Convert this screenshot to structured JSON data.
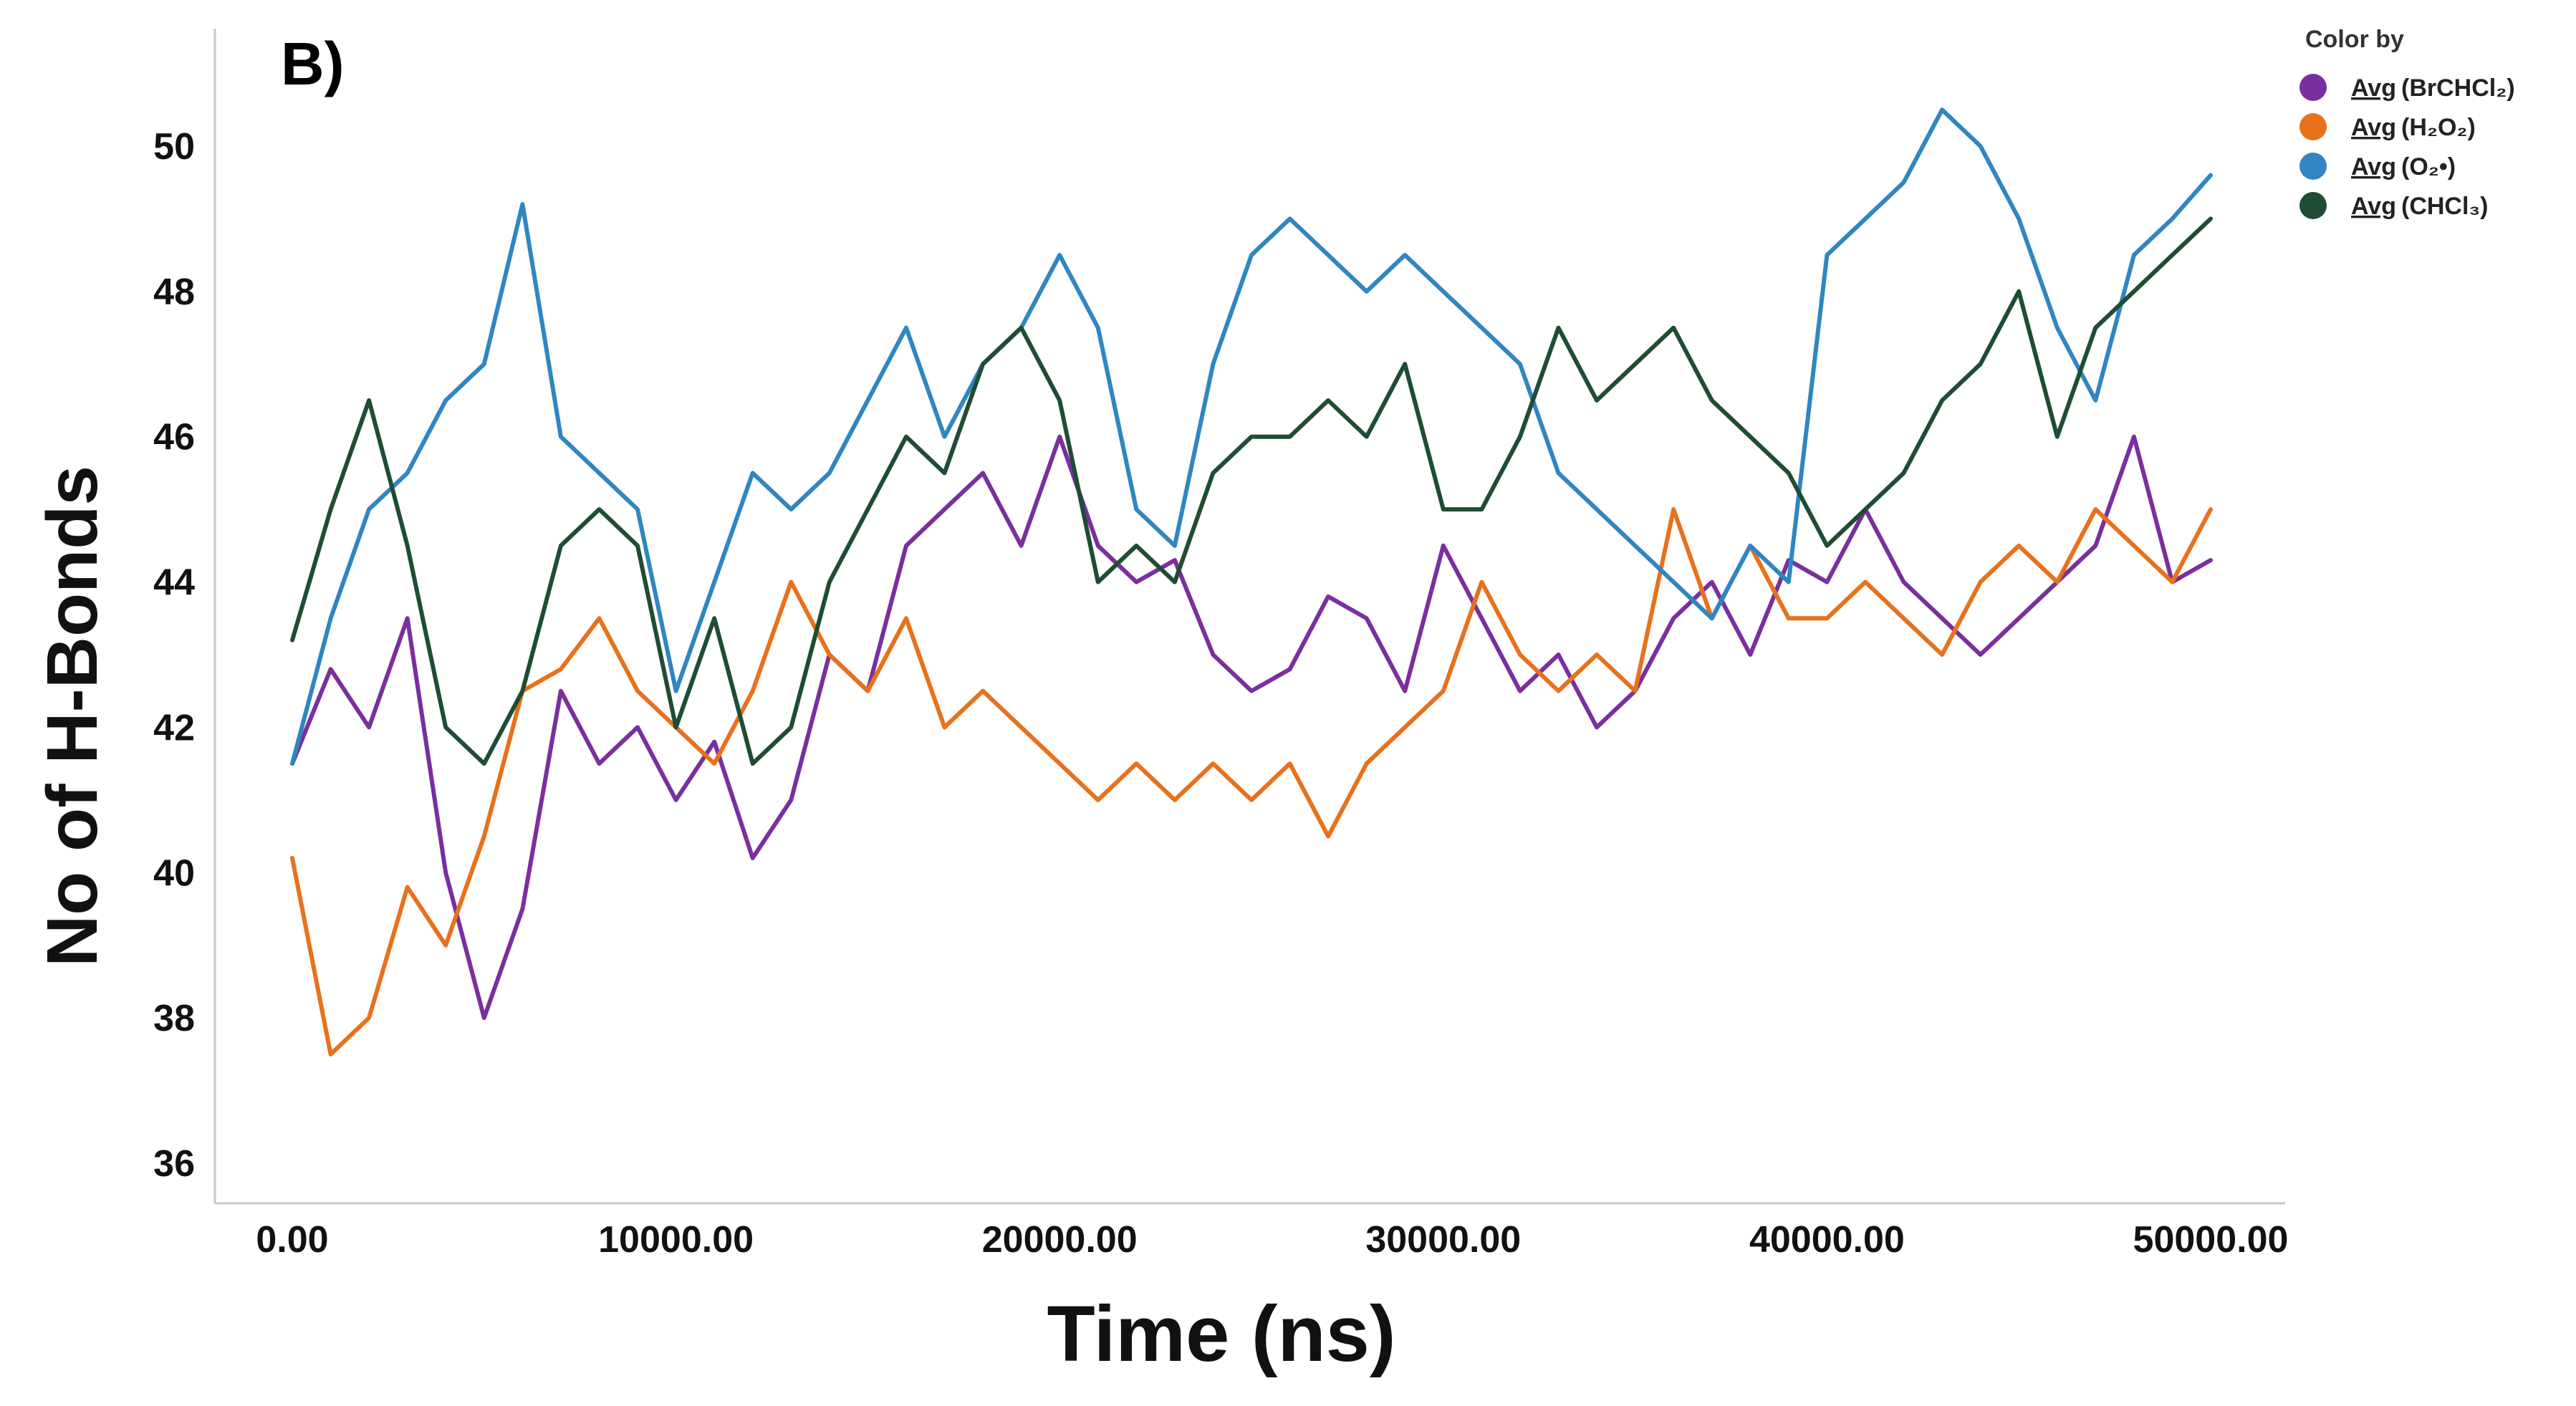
{
  "panel_label": "B)",
  "chart_data": {
    "type": "line",
    "title": "",
    "xlabel": "Time (ns)",
    "ylabel": "No of H-Bonds",
    "xlim": [
      -2000,
      52000
    ],
    "ylim": [
      35.6,
      51.5
    ],
    "x_ticks": [
      {
        "value": 0,
        "label": "0.00"
      },
      {
        "value": 10000,
        "label": "10000.00"
      },
      {
        "value": 20000,
        "label": "20000.00"
      },
      {
        "value": 30000,
        "label": "30000.00"
      },
      {
        "value": 40000,
        "label": "40000.00"
      },
      {
        "value": 50000,
        "label": "50000.00"
      }
    ],
    "y_ticks": [
      {
        "value": 36,
        "label": "36"
      },
      {
        "value": 38,
        "label": "38"
      },
      {
        "value": 40,
        "label": "40"
      },
      {
        "value": 42,
        "label": "42"
      },
      {
        "value": 44,
        "label": "44"
      },
      {
        "value": 46,
        "label": "46"
      },
      {
        "value": 48,
        "label": "48"
      },
      {
        "value": 50,
        "label": "50"
      }
    ],
    "grid": false,
    "legend": {
      "title": "Color by",
      "position": "top-right",
      "entries": [
        {
          "prefix": "Avg",
          "label": "(BrCHCl₂)",
          "color": "#7a2f9e"
        },
        {
          "prefix": "Avg",
          "label": "(H₂O₂)",
          "color": "#e8711c"
        },
        {
          "prefix": "Avg",
          "label": "(O₂•)",
          "color": "#2f86c1"
        },
        {
          "prefix": "Avg",
          "label": "(CHCl₃)",
          "color": "#1e4d34"
        }
      ]
    },
    "series": [
      {
        "name": "Avg (BrCHCl₂)",
        "color": "#7a2f9e",
        "x": [
          0,
          1000,
          2000,
          3000,
          4000,
          5000,
          6000,
          7000,
          8000,
          9000,
          10000,
          11000,
          12000,
          13000,
          14000,
          15000,
          16000,
          17000,
          18000,
          19000,
          20000,
          21000,
          22000,
          23000,
          24000,
          25000,
          26000,
          27000,
          28000,
          29000,
          30000,
          31000,
          32000,
          33000,
          34000,
          35000,
          36000,
          37000,
          38000,
          39000,
          40000,
          41000,
          42000,
          43000,
          44000,
          45000,
          46000,
          47000,
          48000,
          49000,
          50000
        ],
        "y": [
          41.5,
          42.8,
          42.0,
          43.5,
          40.0,
          38.0,
          39.5,
          42.5,
          41.5,
          42.0,
          41.0,
          41.8,
          40.2,
          41.0,
          43.0,
          42.5,
          44.5,
          45.0,
          45.5,
          44.5,
          46.0,
          44.5,
          44.0,
          44.3,
          43.0,
          42.5,
          42.8,
          43.8,
          43.5,
          42.5,
          44.5,
          43.5,
          42.5,
          43.0,
          42.0,
          42.5,
          43.5,
          44.0,
          43.0,
          44.3,
          44.0,
          45.0,
          44.0,
          43.5,
          43.0,
          43.5,
          44.0,
          44.5,
          46.0,
          44.0,
          44.3
        ]
      },
      {
        "name": "Avg (H₂O₂)",
        "color": "#e8711c",
        "x": [
          0,
          1000,
          2000,
          3000,
          4000,
          5000,
          6000,
          7000,
          8000,
          9000,
          10000,
          11000,
          12000,
          13000,
          14000,
          15000,
          16000,
          17000,
          18000,
          19000,
          20000,
          21000,
          22000,
          23000,
          24000,
          25000,
          26000,
          27000,
          28000,
          29000,
          30000,
          31000,
          32000,
          33000,
          34000,
          35000,
          36000,
          37000,
          38000,
          39000,
          40000,
          41000,
          42000,
          43000,
          44000,
          45000,
          46000,
          47000,
          48000,
          49000,
          50000
        ],
        "y": [
          40.2,
          37.5,
          38.0,
          39.8,
          39.0,
          40.5,
          42.5,
          42.8,
          43.5,
          42.5,
          42.0,
          41.5,
          42.5,
          44.0,
          43.0,
          42.5,
          43.5,
          42.0,
          42.5,
          42.0,
          41.5,
          41.0,
          41.5,
          41.0,
          41.5,
          41.0,
          41.5,
          40.5,
          41.5,
          42.0,
          42.5,
          44.0,
          43.0,
          42.5,
          43.0,
          42.5,
          45.0,
          43.5,
          44.5,
          43.5,
          43.5,
          44.0,
          43.5,
          43.0,
          44.0,
          44.5,
          44.0,
          45.0,
          44.5,
          44.0,
          45.0
        ]
      },
      {
        "name": "Avg (O₂•)",
        "color": "#2f86c1",
        "x": [
          0,
          1000,
          2000,
          3000,
          4000,
          5000,
          6000,
          7000,
          8000,
          9000,
          10000,
          11000,
          12000,
          13000,
          14000,
          15000,
          16000,
          17000,
          18000,
          19000,
          20000,
          21000,
          22000,
          23000,
          24000,
          25000,
          26000,
          27000,
          28000,
          29000,
          30000,
          31000,
          32000,
          33000,
          34000,
          35000,
          36000,
          37000,
          38000,
          39000,
          40000,
          41000,
          42000,
          43000,
          44000,
          45000,
          46000,
          47000,
          48000,
          49000,
          50000
        ],
        "y": [
          41.5,
          43.5,
          45.0,
          45.5,
          46.5,
          47.0,
          49.2,
          46.0,
          45.5,
          45.0,
          42.5,
          44.0,
          45.5,
          45.0,
          45.5,
          46.5,
          47.5,
          46.0,
          47.0,
          47.5,
          48.5,
          47.5,
          45.0,
          44.5,
          47.0,
          48.5,
          49.0,
          48.5,
          48.0,
          48.5,
          48.0,
          47.5,
          47.0,
          45.5,
          45.0,
          44.5,
          44.0,
          43.5,
          44.5,
          44.0,
          48.5,
          49.0,
          49.5,
          50.5,
          50.0,
          49.0,
          47.5,
          46.5,
          48.5,
          49.0,
          49.6
        ]
      },
      {
        "name": "Avg (CHCl₃)",
        "color": "#1e4d34",
        "x": [
          0,
          1000,
          2000,
          3000,
          4000,
          5000,
          6000,
          7000,
          8000,
          9000,
          10000,
          11000,
          12000,
          13000,
          14000,
          15000,
          16000,
          17000,
          18000,
          19000,
          20000,
          21000,
          22000,
          23000,
          24000,
          25000,
          26000,
          27000,
          28000,
          29000,
          30000,
          31000,
          32000,
          33000,
          34000,
          35000,
          36000,
          37000,
          38000,
          39000,
          40000,
          41000,
          42000,
          43000,
          44000,
          45000,
          46000,
          47000,
          48000,
          49000,
          50000
        ],
        "y": [
          43.2,
          45.0,
          46.5,
          44.5,
          42.0,
          41.5,
          42.5,
          44.5,
          45.0,
          44.5,
          42.0,
          43.5,
          41.5,
          42.0,
          44.0,
          45.0,
          46.0,
          45.5,
          47.0,
          47.5,
          46.5,
          44.0,
          44.5,
          44.0,
          45.5,
          46.0,
          46.0,
          46.5,
          46.0,
          47.0,
          45.0,
          45.0,
          46.0,
          47.5,
          46.5,
          47.0,
          47.5,
          46.5,
          46.0,
          45.5,
          44.5,
          45.0,
          45.5,
          46.5,
          47.0,
          48.0,
          46.0,
          47.5,
          48.0,
          48.5,
          49.0
        ]
      }
    ]
  }
}
